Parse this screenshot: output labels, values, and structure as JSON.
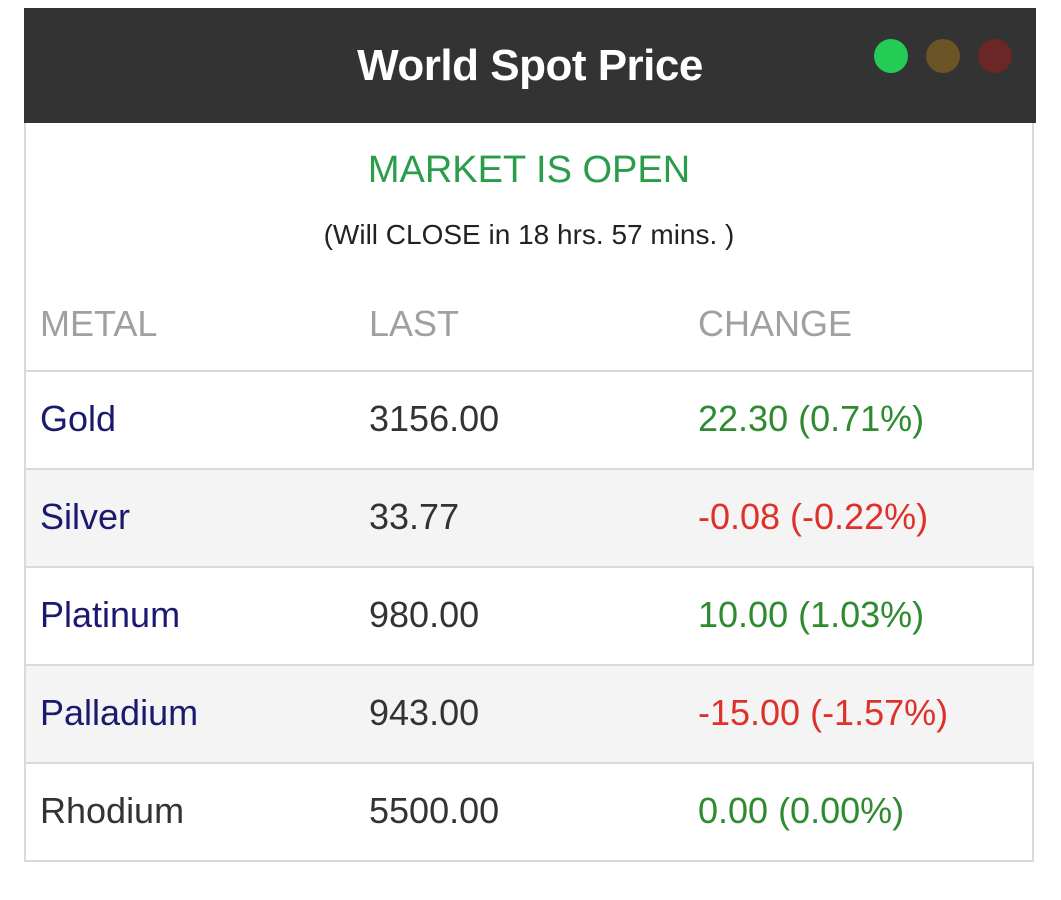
{
  "header": {
    "title": "World Spot Price",
    "lights": [
      {
        "name": "green-light-icon",
        "color": "#22cc55"
      },
      {
        "name": "yellow-light-icon",
        "color": "#6b5426"
      },
      {
        "name": "red-light-icon",
        "color": "#6b2626"
      }
    ]
  },
  "market": {
    "status": "MARKET IS OPEN",
    "status_color": "#2a9d4b",
    "note": "(Will CLOSE in 18 hrs. 57 mins. )"
  },
  "table": {
    "columns": [
      "METAL",
      "LAST",
      "CHANGE"
    ],
    "rows": [
      {
        "metal": "Gold",
        "last": "3156.00",
        "change": "22.30 (0.71%)",
        "metal_color": "#1a1a6e",
        "change_color": "#2e8b2e"
      },
      {
        "metal": "Silver",
        "last": "33.77",
        "change": "-0.08 (-0.22%)",
        "metal_color": "#1a1a6e",
        "change_color": "#e0302a"
      },
      {
        "metal": "Platinum",
        "last": "980.00",
        "change": "10.00 (1.03%)",
        "metal_color": "#1a1a6e",
        "change_color": "#2e8b2e"
      },
      {
        "metal": "Palladium",
        "last": "943.00",
        "change": "-15.00 (-1.57%)",
        "metal_color": "#1a1a6e",
        "change_color": "#e0302a"
      },
      {
        "metal": "Rhodium",
        "last": "5500.00",
        "change": "0.00 (0.00%)",
        "metal_color": "#333333",
        "change_color": "#2e8b2e"
      }
    ]
  }
}
